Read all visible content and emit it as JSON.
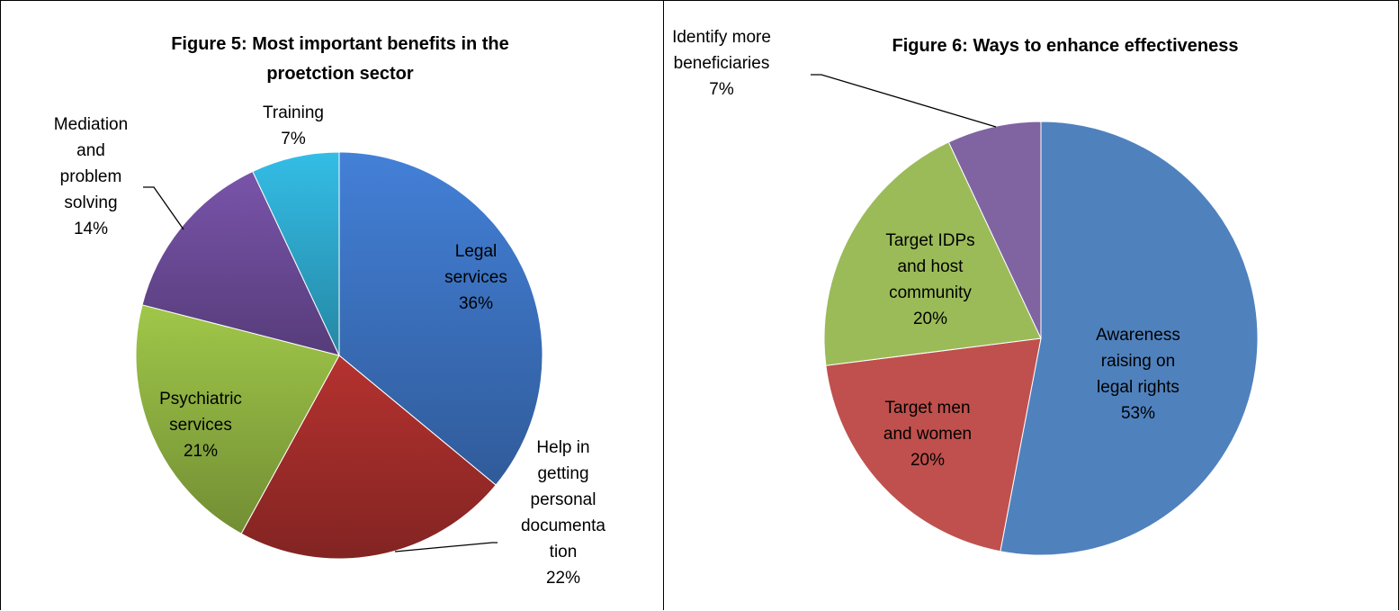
{
  "chart_data": [
    {
      "type": "pie",
      "title": "Figure 5: Most important benefits in the proetction sector",
      "title_lines": [
        "Figure 5: Most important benefits in the",
        "proetction sector"
      ],
      "slices": [
        {
          "label_lines": [
            "Legal",
            "services"
          ],
          "value": 36,
          "pct_label": "36%",
          "color": "#3c72c0"
        },
        {
          "label_lines": [
            "Help in",
            "getting",
            "personal",
            "documenta",
            "tion"
          ],
          "value": 22,
          "pct_label": "22%",
          "color": "#a22d2a"
        },
        {
          "label_lines": [
            "Psychiatric",
            "services"
          ],
          "value": 21,
          "pct_label": "21%",
          "color": "#8fb241"
        },
        {
          "label_lines": [
            "Mediation",
            "and",
            "problem",
            "solving"
          ],
          "value": 14,
          "pct_label": "14%",
          "color": "#6c4b98"
        },
        {
          "label_lines": [
            "Training"
          ],
          "value": 7,
          "pct_label": "7%",
          "color": "#2ea9cd"
        }
      ]
    },
    {
      "type": "pie",
      "title": "Figure 6: Ways to enhance effectiveness",
      "title_lines": [
        "Figure 6: Ways to enhance effectiveness"
      ],
      "slices": [
        {
          "label_lines": [
            "Awareness",
            "raising on",
            "legal rights"
          ],
          "value": 53,
          "pct_label": "53%",
          "color": "#4f81bd"
        },
        {
          "label_lines": [
            "Target men",
            "and women"
          ],
          "value": 20,
          "pct_label": "20%",
          "color": "#c0504d"
        },
        {
          "label_lines": [
            "Target IDPs",
            "and host",
            "community"
          ],
          "value": 20,
          "pct_label": "20%",
          "color": "#9bbb59"
        },
        {
          "label_lines": [
            "Identify more",
            "beneficiaries"
          ],
          "value": 7,
          "pct_label": "7%",
          "color": "#8064a2"
        }
      ]
    }
  ]
}
